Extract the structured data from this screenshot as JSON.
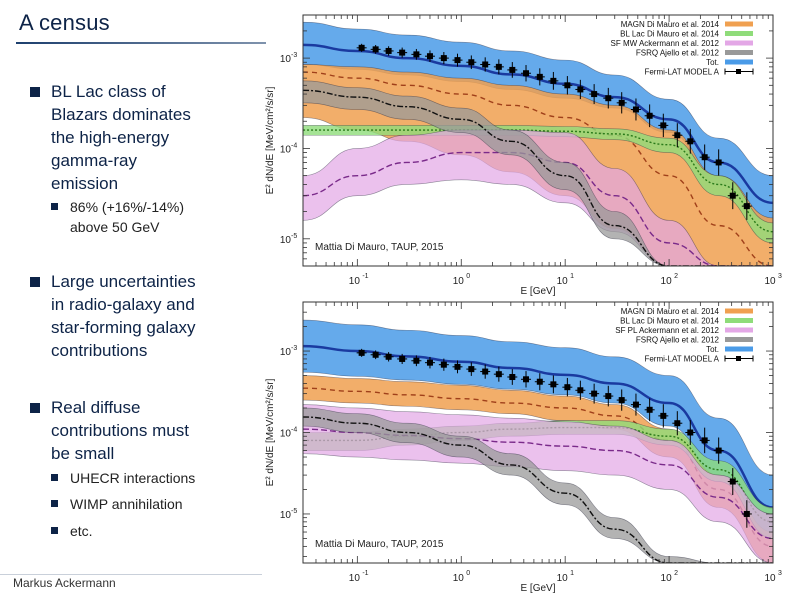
{
  "slide": {
    "title": "A census",
    "footer": "Markus Ackermann",
    "bullets": [
      {
        "text": [
          "BL Lac class of",
          "Blazars dominates",
          "the high-energy",
          "gamma-ray",
          "emission"
        ]
      },
      {
        "text": [
          "Large uncertainties",
          "in radio-galaxy and",
          "star-forming galaxy",
          "contributions"
        ]
      },
      {
        "text": [
          "Real diffuse",
          "contributions must",
          "be small"
        ]
      }
    ],
    "subbullets": [
      {
        "text": [
          "86% (+16%/-14%)",
          "above 50 GeV"
        ]
      },
      {
        "text": [
          "UHECR interactions"
        ]
      },
      {
        "text": [
          "WIMP annihilation"
        ]
      },
      {
        "text": [
          "etc."
        ]
      }
    ]
  },
  "chart_data": [
    {
      "type": "area",
      "title": "",
      "annotation": "Mattia Di Mauro, TAUP, 2015",
      "xlabel": "E [GeV]",
      "ylabel": "E² dN/dE [MeV/cm²/s/sr]",
      "xscale": "log",
      "yscale": "log",
      "xlim": [
        0.03,
        1000
      ],
      "ylim": [
        5e-06,
        0.003
      ],
      "xticks": [
        "10^-1",
        "10^0",
        "10^1",
        "10^2",
        "10^3"
      ],
      "yticks": [
        "10^-3",
        "10^-4",
        "10^-5"
      ],
      "legend_position": "top-right",
      "legend": [
        {
          "label": "MAGN Di Mauro et al. 2014",
          "color": "#f0a050"
        },
        {
          "label": "BL Lac Di Mauro et al. 2014",
          "color": "#8fdc7a"
        },
        {
          "label": "SF MW Ackermann et al. 2012",
          "color": "#e3a7e6"
        },
        {
          "label": "FSRQ Ajello et al. 2012",
          "color": "#999999"
        },
        {
          "label": "Tot.",
          "color": "#4a9be8"
        },
        {
          "label": "Fermi-LAT MODEL A",
          "color": "#000000",
          "marker": "square-with-errorbars"
        }
      ],
      "x": [
        0.03,
        0.1,
        0.3,
        1,
        3,
        10,
        30,
        100,
        300,
        1000
      ],
      "series": [
        {
          "name": "MAGN",
          "color": "#f0a050",
          "lower": [
            0.00022,
            0.00016,
            0.00012,
            8.5e-05,
            5.5e-05,
            3e-05,
            1.3e-05,
            5e-06,
            3e-06,
            2e-06
          ],
          "central": [
            0.0007,
            0.0006,
            0.0005,
            0.0004,
            0.0003,
            0.00022,
            0.00014,
            5e-05,
            1.4e-05,
            5e-06
          ],
          "upper": [
            0.00085,
            0.0008,
            0.0007,
            0.0006,
            0.0005,
            0.0004,
            0.0003,
            0.00016,
            5e-05,
            1.7e-05
          ]
        },
        {
          "name": "BL Lac",
          "color": "#8fdc7a",
          "lower": [
            0.00014,
            0.00014,
            0.00014,
            0.00014,
            0.00014,
            0.000135,
            0.000125,
            9e-05,
            3e-05,
            9e-06
          ],
          "central": [
            0.00016,
            0.00016,
            0.00016,
            0.00016,
            0.00016,
            0.000155,
            0.000145,
            0.00011,
            4e-05,
            1.2e-05
          ],
          "upper": [
            0.00018,
            0.00018,
            0.00018,
            0.00018,
            0.00018,
            0.000175,
            0.000165,
            0.00013,
            5e-05,
            1.5e-05
          ]
        },
        {
          "name": "SF MW",
          "color": "#e3a7e6",
          "lower": [
            1.6e-05,
            3e-05,
            4e-05,
            4.5e-05,
            4e-05,
            2.5e-05,
            1.2e-05,
            4e-06,
            2e-06,
            2e-06
          ],
          "central": [
            3e-05,
            5e-05,
            7e-05,
            9e-05,
            9e-05,
            7e-05,
            3e-05,
            9e-06,
            3e-06,
            2e-06
          ],
          "upper": [
            5e-05,
            0.0001,
            0.00014,
            0.00016,
            0.00016,
            0.00015,
            6e-05,
            1.6e-05,
            4e-06,
            2e-06
          ]
        },
        {
          "name": "FSRQ",
          "color": "#999999",
          "lower": [
            0.00032,
            0.00027,
            0.00021,
            0.00015,
            8.5e-05,
            3.5e-05,
            1e-05,
            2e-06,
            1e-06,
            1e-06
          ],
          "central": [
            0.00044,
            0.00037,
            0.00029,
            0.00021,
            0.00012,
            5e-05,
            1.4e-05,
            3e-06,
            1e-06,
            1e-06
          ],
          "upper": [
            0.00056,
            0.00047,
            0.00038,
            0.00028,
            0.00016,
            7e-05,
            2e-05,
            4e-06,
            1e-06,
            1e-06
          ]
        },
        {
          "name": "Tot.",
          "color": "#4a9be8",
          "lower": [
            0.00085,
            0.00075,
            0.00065,
            0.00055,
            0.00045,
            0.00036,
            0.00028,
            0.00015,
            4e-05,
            1.5e-05
          ],
          "central": [
            0.0014,
            0.0012,
            0.001,
            0.00082,
            0.00066,
            0.00052,
            0.00037,
            0.00021,
            7e-05,
            2.5e-05
          ],
          "upper": [
            0.0025,
            0.0021,
            0.0018,
            0.0015,
            0.0012,
            0.00095,
            0.00065,
            0.00035,
            0.00013,
            5e-05
          ]
        }
      ],
      "points": {
        "name": "Fermi-LAT MODEL A",
        "x": [
          0.11,
          0.15,
          0.2,
          0.27,
          0.37,
          0.5,
          0.68,
          0.92,
          1.25,
          1.7,
          2.3,
          3.1,
          4.2,
          5.7,
          7.7,
          10.5,
          14,
          19,
          26,
          35,
          48,
          65,
          88,
          120,
          160,
          220,
          300,
          410,
          560
        ],
        "y": [
          0.0013,
          0.00125,
          0.0012,
          0.00115,
          0.0011,
          0.00105,
          0.001,
          0.00095,
          0.0009,
          0.00085,
          0.0008,
          0.00074,
          0.00068,
          0.00062,
          0.00056,
          0.0005,
          0.00045,
          0.0004,
          0.00036,
          0.00032,
          0.00027,
          0.00023,
          0.00018,
          0.00014,
          0.00012,
          8e-05,
          7e-05,
          3e-05,
          2.3e-05
        ]
      }
    },
    {
      "type": "area",
      "title": "",
      "annotation": "Mattia Di Mauro, TAUP, 2015",
      "xlabel": "E [GeV]",
      "ylabel": "E² dN/dE [MeV/cm²/s/sr]",
      "xscale": "log",
      "yscale": "log",
      "xlim": [
        0.03,
        1000
      ],
      "ylim": [
        2.5e-06,
        0.004
      ],
      "xticks": [
        "10^-1",
        "10^0",
        "10^1",
        "10^2",
        "10^3"
      ],
      "yticks": [
        "10^-3",
        "10^-4",
        "10^-5"
      ],
      "legend_position": "top-right",
      "legend": [
        {
          "label": "MAGN Di Mauro et al. 2014",
          "color": "#f0a050"
        },
        {
          "label": "BL Lac Di Mauro et al. 2014",
          "color": "#8fdc7a"
        },
        {
          "label": "SF PL Ackermann et al. 2012",
          "color": "#e3a7e6"
        },
        {
          "label": "FSRQ Ajello et al. 2012",
          "color": "#999999"
        },
        {
          "label": "Tot.",
          "color": "#4a9be8"
        },
        {
          "label": "Fermi-LAT MODEL A",
          "color": "#000000",
          "marker": "square-with-errorbars"
        }
      ],
      "x": [
        0.03,
        0.1,
        0.3,
        1,
        3,
        10,
        30,
        100,
        300,
        1000
      ],
      "series": [
        {
          "name": "MAGN",
          "color": "#f0a050",
          "lower": [
            0.00025,
            0.00023,
            0.00021,
            0.00019,
            0.00017,
            0.00014,
            0.00011,
            5e-05,
            1.2e-05,
            2.5e-06
          ],
          "central": [
            0.00035,
            0.00032,
            0.00029,
            0.00026,
            0.00023,
            0.0002,
            0.00016,
            8e-05,
            2e-05,
            4e-06
          ],
          "upper": [
            0.0005,
            0.00046,
            0.00042,
            0.00038,
            0.00033,
            0.00028,
            0.00022,
            0.00011,
            3e-05,
            6e-06
          ]
        },
        {
          "name": "BL Lac",
          "color": "#8fdc7a",
          "lower": [
            6e-05,
            6e-05,
            7e-05,
            8e-05,
            9e-05,
            9.5e-05,
            9.5e-05,
            7e-05,
            2.5e-05,
            5e-06
          ],
          "central": [
            8e-05,
            8e-05,
            9e-05,
            0.0001,
            0.00011,
            0.000115,
            0.000115,
            9e-05,
            3.5e-05,
            8e-06
          ],
          "upper": [
            0.0001,
            0.0001,
            0.00011,
            0.00012,
            0.00013,
            0.00014,
            0.00014,
            0.00011,
            4.5e-05,
            1.2e-05
          ]
        },
        {
          "name": "SF PL",
          "color": "#e3a7e6",
          "lower": [
            5.5e-05,
            5e-05,
            4.6e-05,
            4.2e-05,
            3.8e-05,
            3.4e-05,
            3e-05,
            2e-05,
            8e-06,
            2.5e-06
          ],
          "central": [
            0.00011,
            0.0001,
            9.2e-05,
            8.4e-05,
            7.6e-05,
            6.8e-05,
            6e-05,
            4e-05,
            1.6e-05,
            5e-06
          ],
          "upper": [
            0.00022,
            0.0002,
            0.00018,
            0.000165,
            0.00015,
            0.000135,
            0.00012,
            8e-05,
            3e-05,
            1e-05
          ]
        },
        {
          "name": "FSRQ",
          "color": "#999999",
          "lower": [
            0.00012,
            0.0001,
            7.5e-05,
            5e-05,
            3e-05,
            1.3e-05,
            5e-06,
            2.5e-06,
            2.5e-06,
            2.5e-06
          ],
          "central": [
            0.000155,
            0.00013,
            0.0001,
            7e-05,
            4e-05,
            1.8e-05,
            6.5e-06,
            2.5e-06,
            2.5e-06,
            2.5e-06
          ],
          "upper": [
            0.0002,
            0.00017,
            0.00013,
            9e-05,
            5.5e-05,
            2.4e-05,
            9e-06,
            3e-06,
            2.5e-06,
            2.5e-06
          ]
        },
        {
          "name": "Tot.",
          "color": "#4a9be8",
          "lower": [
            0.00055,
            0.00049,
            0.00044,
            0.00039,
            0.00034,
            0.00029,
            0.00023,
            0.00012,
            3e-05,
            6e-06
          ],
          "central": [
            0.00115,
            0.001,
            0.00086,
            0.00074,
            0.00062,
            0.00051,
            0.0004,
            0.00023,
            6e-05,
            1.2e-05
          ],
          "upper": [
            0.0024,
            0.0021,
            0.0018,
            0.00155,
            0.0013,
            0.0011,
            0.00085,
            0.0005,
            0.00015,
            3e-05
          ]
        }
      ],
      "points": {
        "name": "Fermi-LAT MODEL A",
        "x": [
          0.11,
          0.15,
          0.2,
          0.27,
          0.37,
          0.5,
          0.68,
          0.92,
          1.25,
          1.7,
          2.3,
          3.1,
          4.2,
          5.7,
          7.7,
          10.5,
          14,
          19,
          26,
          35,
          48,
          65,
          88,
          120,
          160,
          220,
          300,
          410,
          560
        ],
        "y": [
          0.00095,
          0.0009,
          0.00085,
          0.0008,
          0.00076,
          0.00072,
          0.00068,
          0.00064,
          0.0006,
          0.00056,
          0.00052,
          0.00048,
          0.00045,
          0.00042,
          0.00039,
          0.00036,
          0.00033,
          0.0003,
          0.00028,
          0.00025,
          0.00022,
          0.00019,
          0.00016,
          0.00013,
          0.0001,
          8e-05,
          6e-05,
          2.5e-05,
          1e-05
        ]
      }
    }
  ]
}
